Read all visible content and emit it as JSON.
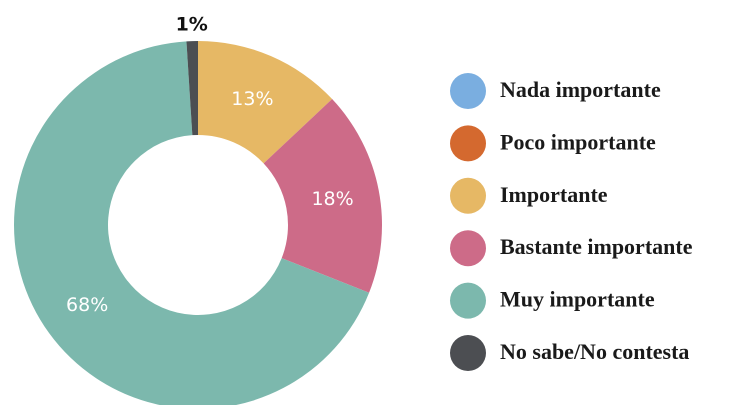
{
  "chart_data": {
    "type": "donut",
    "categories": [
      "Nada importante",
      "Poco importante",
      "Importante",
      "Bastante importante",
      "Muy importante",
      "No sabe/No contesta"
    ],
    "values": [
      0,
      0,
      13,
      18,
      68,
      1
    ],
    "value_labels": [
      null,
      null,
      "13%",
      "18%",
      "68%",
      "1%"
    ],
    "colors": [
      "#7aaee0",
      "#d4692f",
      "#e6b865",
      "#cd6b88",
      "#7cb8ad",
      "#4c4e52"
    ],
    "legend": "right"
  }
}
